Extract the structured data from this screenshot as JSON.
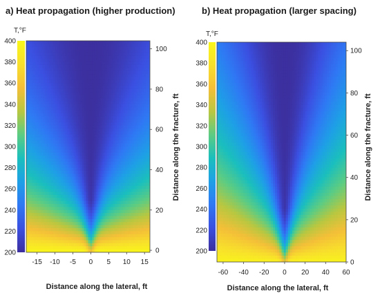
{
  "chart_data": [
    {
      "type": "heatmap",
      "panel": "a",
      "title": "a) Heat propagation (higher production)",
      "xlabel": "Distance along the lateral, ft",
      "ylabel": "Distance along the fracture, ft",
      "xlim": [
        -18,
        16.5
      ],
      "ylim": [
        -1,
        104
      ],
      "xticks": [
        -15,
        -10,
        -5,
        0,
        5,
        10,
        15
      ],
      "yticks": [
        0,
        20,
        40,
        60,
        80,
        100
      ],
      "colorbar": {
        "title": "T,°F",
        "min": 200,
        "max": 400,
        "ticks": [
          200,
          220,
          240,
          260,
          280,
          300,
          320,
          340,
          360,
          380,
          400
        ],
        "colors": [
          "#3c2f9e",
          "#3b4fe0",
          "#2f78f4",
          "#1ea0e6",
          "#1bbfbd",
          "#5ccc83",
          "#b9c740",
          "#f4bf38",
          "#f8df2c",
          "#f9f71a"
        ]
      },
      "field": {
        "description_value": "Temperature is highest near the fracture base (y=0) and decreases with distance along the fracture; near the lateral centerline (x=0) the cool zone extends down to the wellbore."
      }
    },
    {
      "type": "heatmap",
      "panel": "b",
      "title": "b) Heat propagation (larger spacing)",
      "xlabel": "Distance along the lateral, ft",
      "ylabel": "Distance along the fracture, ft",
      "xlim": [
        -66,
        60
      ],
      "ylim": [
        0,
        104
      ],
      "xticks": [
        -60,
        -40,
        -20,
        0,
        20,
        40,
        60
      ],
      "yticks": [
        0,
        20,
        40,
        60,
        80,
        100
      ],
      "colorbar": {
        "title": "T,°F",
        "min": 200,
        "max": 400,
        "ticks": [
          200,
          220,
          240,
          260,
          280,
          300,
          320,
          340,
          360,
          380,
          400
        ],
        "colors": [
          "#3c2f9e",
          "#3b4fe0",
          "#2f78f4",
          "#1ea0e6",
          "#1bbfbd",
          "#5ccc83",
          "#b9c740",
          "#f4bf38",
          "#f8df2c",
          "#f9f71a"
        ]
      }
    }
  ]
}
